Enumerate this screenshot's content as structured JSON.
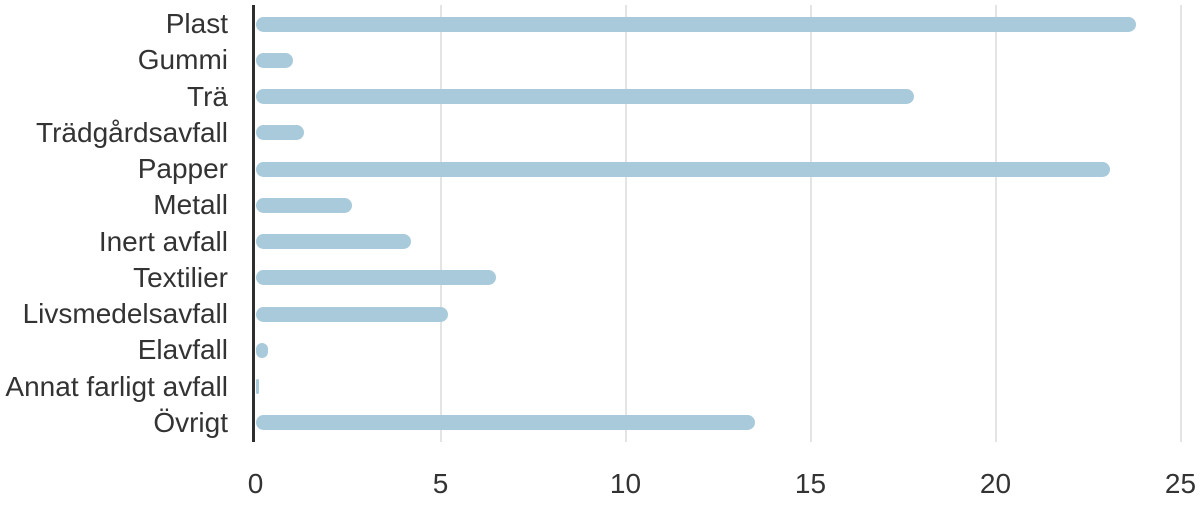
{
  "chart_data": {
    "type": "bar",
    "orientation": "horizontal",
    "title": "",
    "xlabel": "",
    "ylabel": "",
    "categories": [
      "Plast",
      "Gummi",
      "Trä",
      "Trädgårdsavfall",
      "Papper",
      "Metall",
      "Inert avfall",
      "Textilier",
      "Livsmedelsavfall",
      "Elavfall",
      "Annat farligt avfall",
      "Övrigt"
    ],
    "values": [
      23.8,
      1.0,
      17.8,
      1.3,
      23.1,
      2.6,
      4.2,
      6.5,
      5.2,
      0.35,
      0.1,
      13.5
    ],
    "xlim": [
      0,
      25
    ],
    "x_ticks": [
      0,
      5,
      10,
      15,
      20,
      25
    ],
    "x_tick_labels": [
      "0",
      "5",
      "10",
      "15",
      "20",
      "25"
    ],
    "grid": "vertical gridlines at x ticks, no horizontal gridlines",
    "legend": "none",
    "colors": {
      "bar": "#a8cadb",
      "axis_line": "#2e2e2e",
      "gridline": "#e4e4e4",
      "text": "#333333",
      "background": "#ffffff"
    }
  }
}
